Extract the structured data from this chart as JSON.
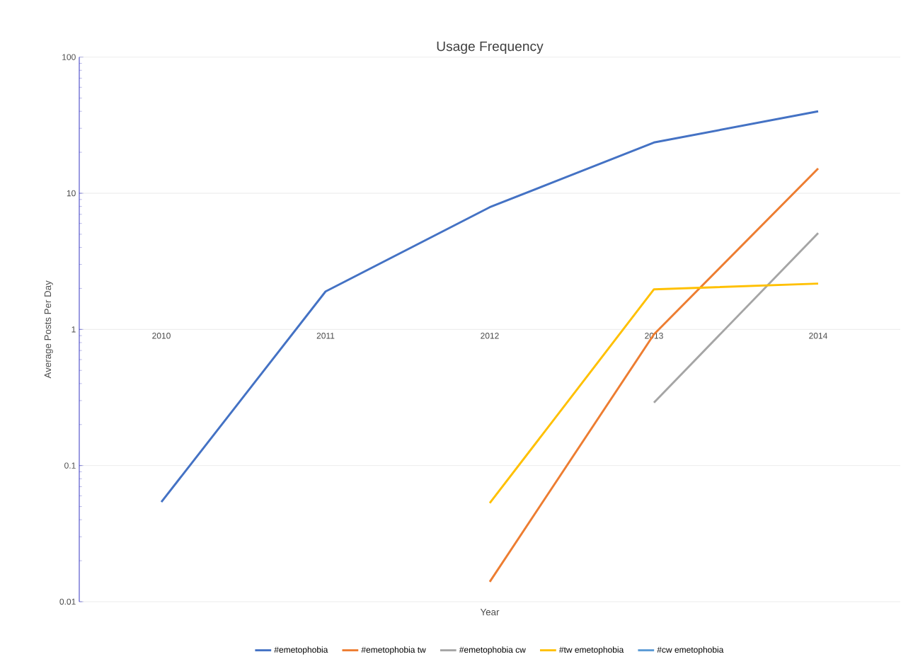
{
  "chart_data": {
    "type": "line",
    "title": "Usage Frequency",
    "xlabel": "Year",
    "ylabel": "Average Posts Per Day",
    "categories": [
      "2010",
      "2011",
      "2012",
      "2013",
      "2014"
    ],
    "series": [
      {
        "name": "#emetophobia",
        "color": "#4472c4",
        "values": [
          0.054,
          1.9,
          7.9,
          23.6,
          40
        ]
      },
      {
        "name": "#emetophobia tw",
        "color": "#ed7d31",
        "values": [
          null,
          null,
          0.014,
          0.92,
          15.2
        ]
      },
      {
        "name": "#emetophobia cw",
        "color": "#a5a5a5",
        "values": [
          null,
          null,
          null,
          0.29,
          5.1
        ]
      },
      {
        "name": "#tw emetophobia",
        "color": "#ffc000",
        "values": [
          null,
          null,
          0.053,
          1.97,
          2.17
        ]
      },
      {
        "name": "#cw emetophobia",
        "color": "#5b9bd5",
        "values": [
          null,
          null,
          null,
          null,
          null
        ]
      }
    ],
    "log": "y",
    "ylim": [
      0.01,
      100
    ],
    "yticks": [
      0.01,
      0.1,
      1,
      10,
      100
    ],
    "grid": "y",
    "legend": "bottom",
    "marker": "none",
    "line_style": "solid"
  }
}
